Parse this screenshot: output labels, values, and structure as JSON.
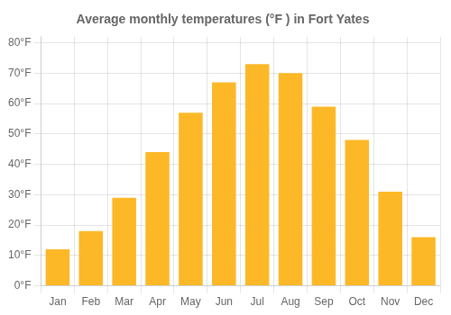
{
  "chart_data": {
    "type": "bar",
    "title": "Average monthly temperatures (°F ) in Fort Yates",
    "categories": [
      "Jan",
      "Feb",
      "Mar",
      "Apr",
      "May",
      "Jun",
      "Jul",
      "Aug",
      "Sep",
      "Oct",
      "Nov",
      "Dec"
    ],
    "values": [
      12,
      18,
      29,
      44,
      57,
      67,
      73,
      70,
      59,
      48,
      31,
      16
    ],
    "color": "#FDB827",
    "ylim": [
      0,
      82
    ],
    "yticks": [
      {
        "value": 0,
        "label": "0°F"
      },
      {
        "value": 10,
        "label": "10°F"
      },
      {
        "value": 20,
        "label": "20°F"
      },
      {
        "value": 30,
        "label": "30°F"
      },
      {
        "value": 40,
        "label": "40°F"
      },
      {
        "value": 50,
        "label": "50°F"
      },
      {
        "value": 60,
        "label": "60°F"
      },
      {
        "value": 70,
        "label": "70°F"
      },
      {
        "value": 80,
        "label": "80°F"
      }
    ],
    "grid": true
  }
}
